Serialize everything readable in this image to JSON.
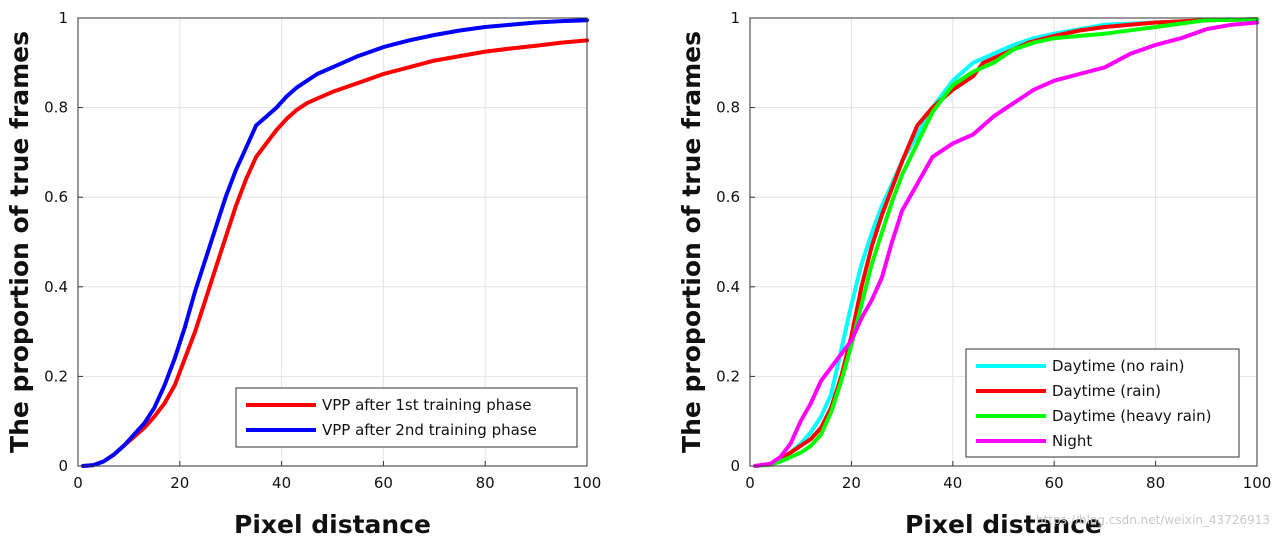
{
  "chart_data": [
    {
      "type": "line",
      "xlabel": "Pixel distance",
      "ylabel": "The proportion of true frames",
      "xlim": [
        0,
        100
      ],
      "ylim": [
        0,
        1
      ],
      "xticks": [
        "0",
        "20",
        "40",
        "60",
        "80",
        "100"
      ],
      "yticks": [
        "0",
        "0.2",
        "0.4",
        "0.6",
        "0.8",
        "1"
      ],
      "grid": true,
      "legend_position": "bottom-right",
      "series": [
        {
          "name": "VPP after 1st training phase",
          "color": "#ff0000",
          "x": [
            1,
            3,
            5,
            7,
            9,
            11,
            13,
            15,
            17,
            19,
            21,
            23,
            25,
            27,
            29,
            31,
            33,
            35,
            37,
            39,
            41,
            43,
            45,
            47,
            50,
            55,
            60,
            65,
            70,
            75,
            80,
            85,
            90,
            95,
            100
          ],
          "y": [
            0,
            0.002,
            0.01,
            0.025,
            0.045,
            0.065,
            0.085,
            0.11,
            0.14,
            0.18,
            0.24,
            0.3,
            0.37,
            0.44,
            0.51,
            0.58,
            0.64,
            0.69,
            0.72,
            0.75,
            0.775,
            0.795,
            0.81,
            0.82,
            0.835,
            0.855,
            0.875,
            0.89,
            0.905,
            0.915,
            0.925,
            0.932,
            0.938,
            0.945,
            0.95
          ]
        },
        {
          "name": "VPP after 2nd training phase",
          "color": "#0000ff",
          "x": [
            1,
            3,
            5,
            7,
            9,
            11,
            13,
            15,
            17,
            19,
            21,
            23,
            25,
            27,
            29,
            31,
            33,
            35,
            37,
            39,
            41,
            43,
            45,
            47,
            50,
            55,
            60,
            65,
            70,
            75,
            80,
            85,
            90,
            95,
            100
          ],
          "y": [
            0,
            0.002,
            0.01,
            0.025,
            0.045,
            0.07,
            0.095,
            0.13,
            0.18,
            0.24,
            0.31,
            0.39,
            0.46,
            0.53,
            0.6,
            0.66,
            0.71,
            0.76,
            0.78,
            0.8,
            0.825,
            0.845,
            0.86,
            0.875,
            0.89,
            0.915,
            0.935,
            0.95,
            0.962,
            0.972,
            0.98,
            0.985,
            0.99,
            0.993,
            0.995
          ]
        }
      ]
    },
    {
      "type": "line",
      "xlabel": "Pixel distance",
      "ylabel": "The proportion of true frames",
      "xlim": [
        0,
        100
      ],
      "ylim": [
        0,
        1
      ],
      "xticks": [
        "0",
        "20",
        "40",
        "60",
        "80",
        "100"
      ],
      "yticks": [
        "0",
        "0.2",
        "0.4",
        "0.6",
        "0.8",
        "1"
      ],
      "grid": true,
      "legend_position": "bottom-right",
      "series": [
        {
          "name": "Daytime (no rain)",
          "color": "#00ffff",
          "x": [
            1,
            4,
            6,
            8,
            10,
            12,
            14,
            16,
            18,
            20,
            22,
            24,
            26,
            28,
            30,
            33,
            36,
            40,
            44,
            48,
            52,
            56,
            60,
            65,
            70,
            80,
            90,
            100
          ],
          "y": [
            0,
            0.005,
            0.015,
            0.03,
            0.05,
            0.075,
            0.11,
            0.16,
            0.26,
            0.36,
            0.45,
            0.52,
            0.58,
            0.63,
            0.68,
            0.74,
            0.8,
            0.86,
            0.9,
            0.92,
            0.94,
            0.955,
            0.965,
            0.975,
            0.985,
            0.99,
            0.995,
            0.997
          ]
        },
        {
          "name": "Daytime (rain)",
          "color": "#ff0000",
          "x": [
            1,
            4,
            6,
            8,
            10,
            12,
            14,
            16,
            18,
            20,
            22,
            24,
            26,
            28,
            30,
            33,
            36,
            40,
            44,
            46,
            50,
            55,
            60,
            65,
            70,
            80,
            90,
            100
          ],
          "y": [
            0,
            0.005,
            0.015,
            0.03,
            0.045,
            0.06,
            0.085,
            0.13,
            0.2,
            0.29,
            0.4,
            0.49,
            0.56,
            0.62,
            0.68,
            0.76,
            0.8,
            0.84,
            0.87,
            0.9,
            0.92,
            0.945,
            0.96,
            0.972,
            0.98,
            0.99,
            0.995,
            0.997
          ]
        },
        {
          "name": "Daytime (heavy rain)",
          "color": "#00ff00",
          "x": [
            1,
            4,
            6,
            8,
            10,
            12,
            14,
            16,
            18,
            20,
            22,
            24,
            26,
            28,
            30,
            33,
            36,
            40,
            44,
            48,
            52,
            56,
            60,
            65,
            70,
            80,
            90,
            100
          ],
          "y": [
            0,
            0.003,
            0.01,
            0.02,
            0.03,
            0.045,
            0.07,
            0.12,
            0.19,
            0.27,
            0.36,
            0.45,
            0.52,
            0.59,
            0.65,
            0.72,
            0.79,
            0.85,
            0.88,
            0.9,
            0.93,
            0.945,
            0.955,
            0.96,
            0.965,
            0.98,
            0.995,
            0.997
          ]
        },
        {
          "name": "Night",
          "color": "#ff00ff",
          "x": [
            1,
            4,
            6,
            8,
            10,
            12,
            14,
            16,
            18,
            20,
            22,
            24,
            26,
            28,
            30,
            33,
            36,
            40,
            44,
            48,
            52,
            56,
            60,
            65,
            70,
            75,
            80,
            85,
            90,
            95,
            100
          ],
          "y": [
            0,
            0.005,
            0.02,
            0.05,
            0.1,
            0.14,
            0.19,
            0.22,
            0.25,
            0.28,
            0.33,
            0.37,
            0.42,
            0.5,
            0.57,
            0.63,
            0.69,
            0.72,
            0.74,
            0.78,
            0.81,
            0.84,
            0.86,
            0.875,
            0.89,
            0.92,
            0.94,
            0.955,
            0.975,
            0.985,
            0.99
          ]
        }
      ]
    }
  ],
  "watermark": "https://blog.csdn.net/weixin_43726913"
}
